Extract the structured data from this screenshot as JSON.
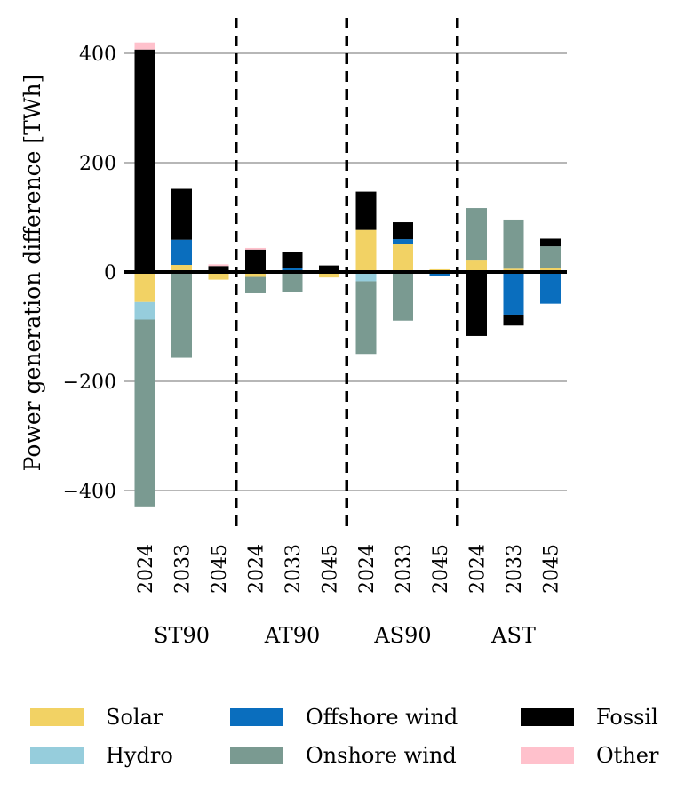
{
  "chart_data": {
    "type": "bar",
    "stacked": true,
    "ylabel": "Power generation difference [TWh]",
    "ylim": [
      -470,
      470
    ],
    "yticks": [
      400,
      200,
      0,
      -200,
      -400
    ],
    "ytick_labels": [
      "400",
      "200",
      "0",
      "−200",
      "−400"
    ],
    "grid": true,
    "legend_position": "bottom",
    "groups": [
      {
        "name": "ST90",
        "years": [
          "2024",
          "2033",
          "2045"
        ]
      },
      {
        "name": "AT90",
        "years": [
          "2024",
          "2033",
          "2045"
        ]
      },
      {
        "name": "AS90",
        "years": [
          "2024",
          "2033",
          "2045"
        ]
      },
      {
        "name": "AST",
        "years": [
          "2024",
          "2033",
          "2045"
        ]
      }
    ],
    "categories": [
      "2024",
      "2033",
      "2045",
      "2024",
      "2033",
      "2045",
      "2024",
      "2033",
      "2045",
      "2024",
      "2033",
      "2045"
    ],
    "series": [
      {
        "name": "Solar",
        "color": "#f2d264",
        "values": [
          -55,
          13,
          -14,
          -9,
          0,
          -10,
          77,
          52,
          5,
          21,
          6,
          7
        ]
      },
      {
        "name": "Hydro",
        "color": "#96cddc",
        "values": [
          -32,
          0,
          0,
          0,
          0,
          0,
          -17,
          0,
          0,
          0,
          0,
          0
        ]
      },
      {
        "name": "Offshore wind",
        "color": "#0a6ebe",
        "values": [
          0,
          46,
          0,
          0,
          8,
          0,
          0,
          8,
          -8,
          0,
          -78,
          -58
        ]
      },
      {
        "name": "Onshore wind",
        "color": "#7a9a91",
        "values": [
          -342,
          -157,
          3,
          -30,
          -36,
          0,
          -133,
          -89,
          0,
          96,
          90,
          40
        ]
      },
      {
        "name": "Fossil",
        "color": "#000000",
        "values": [
          407,
          93,
          8,
          41,
          29,
          12,
          70,
          31,
          0,
          -117,
          -20,
          14
        ]
      },
      {
        "name": "Other",
        "color": "#ffc1cc",
        "values": [
          13,
          0,
          3,
          3,
          0,
          0,
          0,
          0,
          0,
          0,
          0,
          0
        ]
      }
    ]
  }
}
